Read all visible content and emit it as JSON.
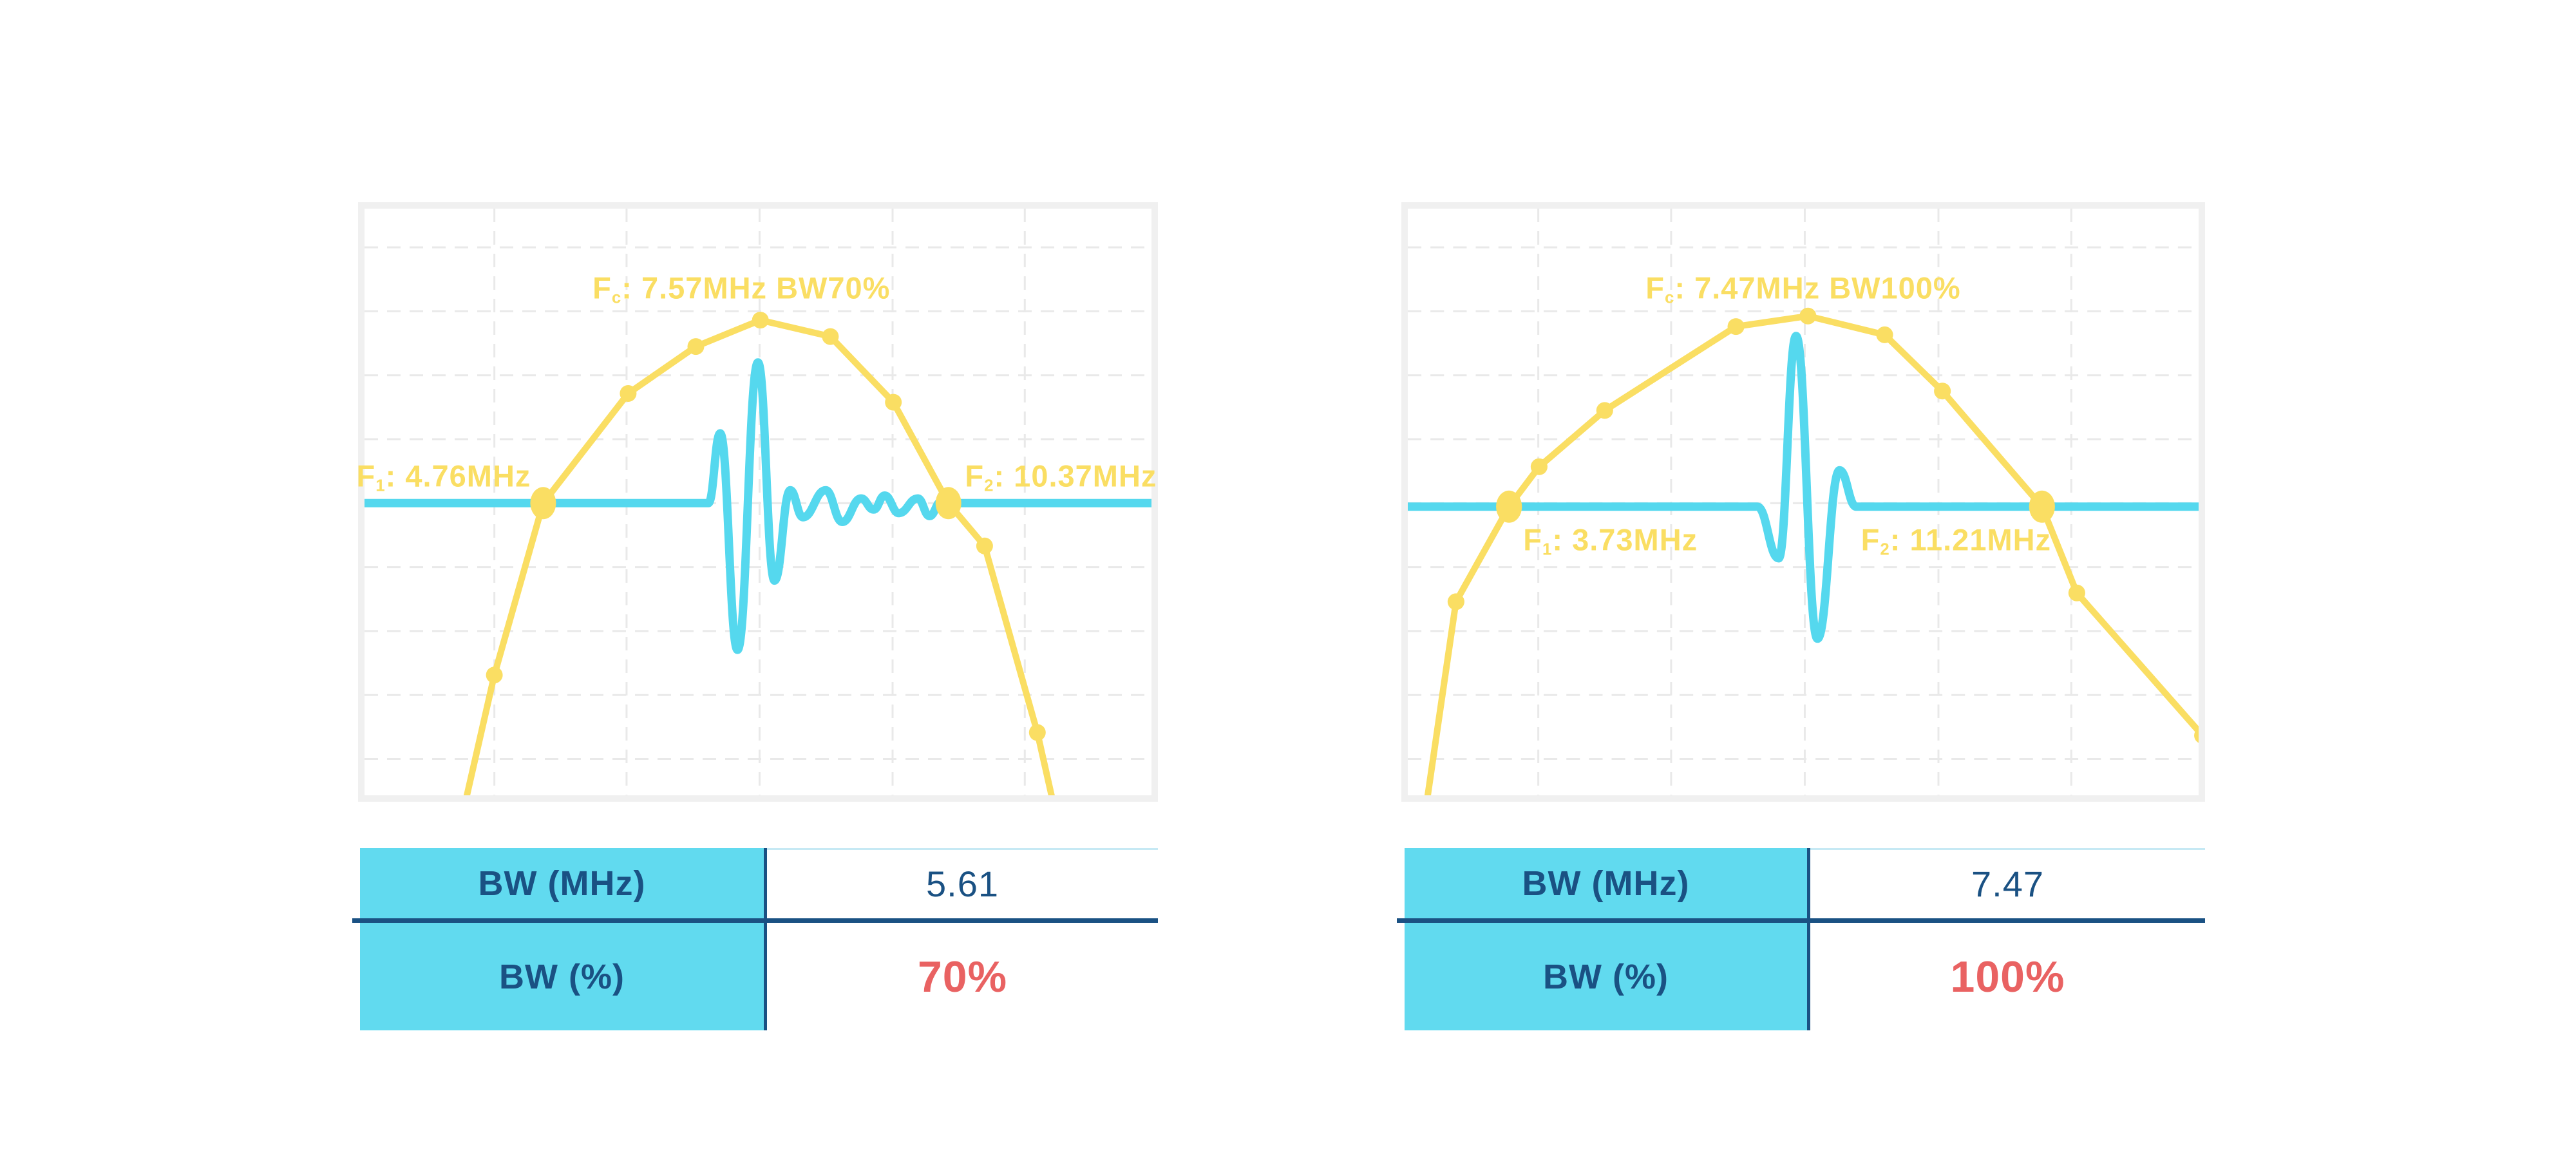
{
  "colors": {
    "yellow": "#FADE63",
    "cyan": "#55D8EE",
    "cyan_fill": "#61DAEF",
    "navy": "#1A5183",
    "red": "#E96262",
    "grid": "#E9E9E9",
    "frame": "#F0F0F0",
    "thin_line": "#C6E9F4",
    "background": "#FFFFFF"
  },
  "chart_data": [
    {
      "type": "line",
      "title": "Pulse spectrum with 70% fractional bandwidth",
      "xlabel": "",
      "ylabel": "",
      "axes_visible": false,
      "grid_on": true,
      "fc_mhz": 7.57,
      "f1_mhz": 4.76,
      "f2_mhz": 10.37,
      "bw_mhz": 5.61,
      "bw_percent": 70,
      "annotations": {
        "fc": {
          "base": "F",
          "sub": "c",
          "rest": ": 7.57MHz BW70%"
        },
        "f1": {
          "base": "F",
          "sub": "1",
          "rest": ": 4.76MHz"
        },
        "f2": {
          "base": "F",
          "sub": "2",
          "rest": ": 10.37MHz"
        }
      },
      "grid": {
        "v": [
          0.165,
          0.333,
          0.502,
          0.671,
          0.839
        ],
        "h": [
          0.066,
          0.175,
          0.284,
          0.393,
          0.502,
          0.611,
          0.72,
          0.829,
          0.938
        ]
      },
      "spectrum": {
        "points": [
          [
            0.125,
            1.03
          ],
          [
            0.165,
            0.795
          ],
          [
            0.227,
            0.502
          ],
          [
            0.335,
            0.315
          ],
          [
            0.421,
            0.235
          ],
          [
            0.503,
            0.19
          ],
          [
            0.592,
            0.218
          ],
          [
            0.672,
            0.33
          ],
          [
            0.742,
            0.502
          ],
          [
            0.788,
            0.575
          ],
          [
            0.855,
            0.893
          ],
          [
            0.878,
            1.03
          ]
        ],
        "markers_small": [
          [
            0.165,
            0.795
          ],
          [
            0.335,
            0.315
          ],
          [
            0.421,
            0.235
          ],
          [
            0.503,
            0.19
          ],
          [
            0.592,
            0.218
          ],
          [
            0.672,
            0.33
          ],
          [
            0.788,
            0.575
          ],
          [
            0.855,
            0.893
          ]
        ],
        "markers_large": [
          [
            0.227,
            0.502
          ],
          [
            0.742,
            0.502
          ]
        ]
      },
      "pulse": {
        "baseline": 0.502,
        "flat_until": 0.437,
        "flat_from": 0.745,
        "extrema": [
          [
            0.452,
            0.383
          ],
          [
            0.474,
            0.752
          ],
          [
            0.5,
            0.262
          ],
          [
            0.521,
            0.634
          ],
          [
            0.541,
            0.48
          ],
          [
            0.557,
            0.526
          ],
          [
            0.586,
            0.48
          ],
          [
            0.607,
            0.534
          ],
          [
            0.631,
            0.494
          ],
          [
            0.647,
            0.513
          ],
          [
            0.661,
            0.489
          ],
          [
            0.679,
            0.519
          ],
          [
            0.703,
            0.494
          ],
          [
            0.718,
            0.524
          ],
          [
            0.733,
            0.499
          ]
        ]
      }
    },
    {
      "type": "line",
      "title": "Pulse spectrum with 100% fractional bandwidth",
      "xlabel": "",
      "ylabel": "",
      "axes_visible": false,
      "grid_on": true,
      "fc_mhz": 7.47,
      "f1_mhz": 3.73,
      "f2_mhz": 11.21,
      "bw_mhz": 7.47,
      "bw_percent": 100,
      "annotations": {
        "fc": {
          "base": "F",
          "sub": "c",
          "rest": ": 7.47MHz BW100%"
        },
        "f1": {
          "base": "F",
          "sub": "1",
          "rest": ": 3.73MHz"
        },
        "f2": {
          "base": "F",
          "sub": "2",
          "rest": ": 11.21MHz"
        }
      },
      "grid": {
        "v": [
          0.165,
          0.333,
          0.502,
          0.671,
          0.839
        ],
        "h": [
          0.066,
          0.175,
          0.284,
          0.393,
          0.502,
          0.611,
          0.72,
          0.829,
          0.938
        ]
      },
      "spectrum": {
        "points": [
          [
            0.022,
            1.03
          ],
          [
            0.061,
            0.67
          ],
          [
            0.128,
            0.508
          ],
          [
            0.166,
            0.44
          ],
          [
            0.249,
            0.344
          ],
          [
            0.415,
            0.201
          ],
          [
            0.506,
            0.183
          ],
          [
            0.603,
            0.215
          ],
          [
            0.676,
            0.311
          ],
          [
            0.802,
            0.508
          ],
          [
            0.846,
            0.655
          ],
          [
            1.005,
            0.898
          ]
        ],
        "markers_small": [
          [
            0.061,
            0.67
          ],
          [
            0.166,
            0.44
          ],
          [
            0.249,
            0.344
          ],
          [
            0.415,
            0.201
          ],
          [
            0.506,
            0.183
          ],
          [
            0.603,
            0.215
          ],
          [
            0.676,
            0.311
          ],
          [
            0.846,
            0.655
          ],
          [
            1.005,
            0.898
          ]
        ],
        "markers_large": [
          [
            0.128,
            0.508
          ],
          [
            0.802,
            0.508
          ]
        ]
      },
      "pulse": {
        "baseline": 0.508,
        "flat_until": 0.442,
        "flat_from": 0.567,
        "extrema": [
          [
            0.469,
            0.596
          ],
          [
            0.491,
            0.217
          ],
          [
            0.518,
            0.733
          ],
          [
            0.546,
            0.446
          ]
        ]
      }
    }
  ],
  "tables": [
    {
      "rows": [
        {
          "label": "BW (MHz)",
          "value": "5.61"
        },
        {
          "label": "BW (%)",
          "value": "70%"
        }
      ]
    },
    {
      "rows": [
        {
          "label": "BW (MHz)",
          "value": "7.47"
        },
        {
          "label": "BW (%)",
          "value": "100%"
        }
      ]
    }
  ]
}
